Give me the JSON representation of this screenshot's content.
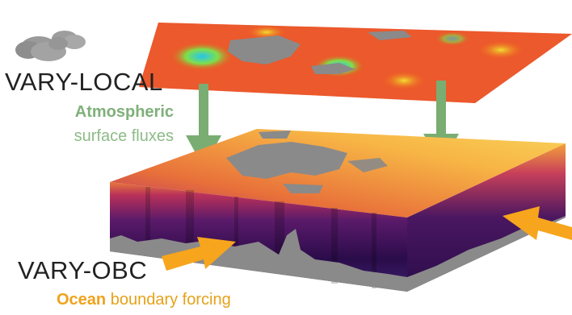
{
  "labels": {
    "vary_local": "VARY-LOCAL",
    "atmospheric_bold": "Atmospheric",
    "surface_fluxes": "surface fluxes",
    "vary_obc": "VARY-OBC",
    "ocean_bold": "Ocean",
    "boundary_forcing": " boundary forcing"
  },
  "colors": {
    "green_arrow": "#7aad72",
    "orange_arrow": "#f7a51d",
    "land_gray": "#8a8a8a",
    "cloud": "#9a9a9a",
    "ocean_surface_warm": "#f7c84a",
    "ocean_deep": "#2a0c4a"
  },
  "icons": {
    "cloud": "cloud-icon",
    "down_arrow": "down-arrow-icon",
    "side_arrow": "right-arrow-icon"
  }
}
